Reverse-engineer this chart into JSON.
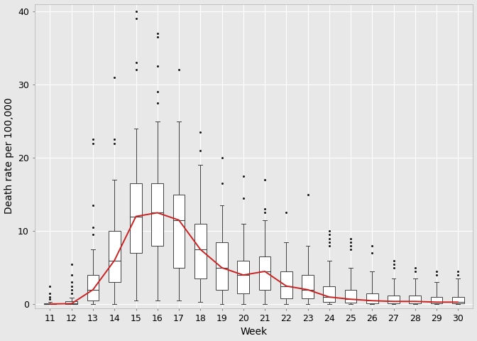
{
  "weeks": [
    11,
    12,
    13,
    14,
    15,
    16,
    17,
    18,
    19,
    20,
    21,
    22,
    23,
    24,
    25,
    26,
    27,
    28,
    29,
    30
  ],
  "boxplot_stats": {
    "11": {
      "q1": 0.0,
      "median": 0.05,
      "q3": 0.1,
      "whisker_low": 0.0,
      "whisker_high": 0.3,
      "outliers": [
        0.7,
        1.0,
        1.5,
        2.5
      ]
    },
    "12": {
      "q1": 0.0,
      "median": 0.1,
      "q3": 0.4,
      "whisker_low": 0.0,
      "whisker_high": 0.9,
      "outliers": [
        1.5,
        2.0,
        2.5,
        3.0,
        4.0,
        5.5
      ]
    },
    "13": {
      "q1": 0.5,
      "median": 2.0,
      "q3": 4.0,
      "whisker_low": 0.0,
      "whisker_high": 7.5,
      "outliers": [
        9.5,
        10.5,
        13.5,
        22.0,
        22.5
      ]
    },
    "14": {
      "q1": 3.0,
      "median": 6.0,
      "q3": 10.0,
      "whisker_low": 0.0,
      "whisker_high": 17.0,
      "outliers": [
        22.0,
        22.5,
        31.0
      ]
    },
    "15": {
      "q1": 7.0,
      "median": 12.0,
      "q3": 16.5,
      "whisker_low": 0.5,
      "whisker_high": 24.0,
      "outliers": [
        32.0,
        33.0,
        39.0,
        40.0
      ]
    },
    "16": {
      "q1": 8.0,
      "median": 12.5,
      "q3": 16.5,
      "whisker_low": 0.5,
      "whisker_high": 25.0,
      "outliers": [
        27.5,
        29.0,
        32.5,
        36.5,
        37.0
      ]
    },
    "17": {
      "q1": 5.0,
      "median": 11.5,
      "q3": 15.0,
      "whisker_low": 0.5,
      "whisker_high": 25.0,
      "outliers": [
        32.0
      ]
    },
    "18": {
      "q1": 3.5,
      "median": 7.5,
      "q3": 11.0,
      "whisker_low": 0.3,
      "whisker_high": 19.0,
      "outliers": [
        21.0,
        23.5
      ]
    },
    "19": {
      "q1": 2.0,
      "median": 5.0,
      "q3": 8.5,
      "whisker_low": 0.0,
      "whisker_high": 13.5,
      "outliers": [
        16.5,
        20.0
      ]
    },
    "20": {
      "q1": 1.5,
      "median": 4.0,
      "q3": 6.0,
      "whisker_low": 0.0,
      "whisker_high": 11.0,
      "outliers": [
        14.5,
        17.5
      ]
    },
    "21": {
      "q1": 2.0,
      "median": 4.5,
      "q3": 6.5,
      "whisker_low": 0.0,
      "whisker_high": 11.5,
      "outliers": [
        12.5,
        13.0,
        17.0
      ]
    },
    "22": {
      "q1": 0.8,
      "median": 2.5,
      "q3": 4.5,
      "whisker_low": 0.0,
      "whisker_high": 8.5,
      "outliers": [
        12.5
      ]
    },
    "23": {
      "q1": 0.8,
      "median": 2.0,
      "q3": 4.0,
      "whisker_low": 0.0,
      "whisker_high": 8.0,
      "outliers": [
        15.0
      ]
    },
    "24": {
      "q1": 0.3,
      "median": 1.0,
      "q3": 2.5,
      "whisker_low": 0.0,
      "whisker_high": 6.0,
      "outliers": [
        8.0,
        8.5,
        9.0,
        9.5,
        10.0
      ]
    },
    "25": {
      "q1": 0.2,
      "median": 0.7,
      "q3": 2.0,
      "whisker_low": 0.0,
      "whisker_high": 5.0,
      "outliers": [
        7.5,
        8.0,
        8.5,
        9.0
      ]
    },
    "26": {
      "q1": 0.15,
      "median": 0.5,
      "q3": 1.5,
      "whisker_low": 0.0,
      "whisker_high": 4.5,
      "outliers": [
        7.0,
        8.0
      ]
    },
    "27": {
      "q1": 0.1,
      "median": 0.4,
      "q3": 1.2,
      "whisker_low": 0.0,
      "whisker_high": 3.5,
      "outliers": [
        5.0,
        5.5,
        6.0
      ]
    },
    "28": {
      "q1": 0.1,
      "median": 0.4,
      "q3": 1.2,
      "whisker_low": 0.0,
      "whisker_high": 3.5,
      "outliers": [
        4.5,
        5.0
      ]
    },
    "29": {
      "q1": 0.1,
      "median": 0.3,
      "q3": 1.0,
      "whisker_low": 0.0,
      "whisker_high": 3.0,
      "outliers": [
        4.0,
        4.5
      ]
    },
    "30": {
      "q1": 0.1,
      "median": 0.3,
      "q3": 1.0,
      "whisker_low": 0.0,
      "whisker_high": 3.5,
      "outliers": [
        4.0,
        4.5
      ]
    }
  },
  "median_line_x": [
    11,
    12,
    13,
    14,
    15,
    16,
    17,
    18,
    19,
    20,
    21,
    22,
    23,
    24,
    25,
    26,
    27,
    28,
    29,
    30
  ],
  "median_line_y": [
    0.05,
    0.1,
    2.0,
    6.0,
    12.0,
    12.5,
    11.5,
    7.5,
    5.0,
    4.0,
    4.5,
    2.5,
    2.0,
    1.0,
    0.7,
    0.5,
    0.4,
    0.4,
    0.3,
    0.3
  ],
  "box_color": "#ffffff",
  "box_edge_color": "#404040",
  "median_line_color": "#cc2222",
  "outlier_color": "#1a1a1a",
  "whisker_color": "#404040",
  "background_color": "#e8e8e8",
  "grid_color": "#ffffff",
  "box_width": 0.55,
  "xlabel": "Week",
  "ylabel": "Death rate per 100,000",
  "ylim": [
    -0.5,
    41
  ],
  "yticks": [
    0,
    10,
    20,
    30,
    40
  ],
  "title_fontsize": 11,
  "axis_fontsize": 10,
  "tick_fontsize": 9
}
